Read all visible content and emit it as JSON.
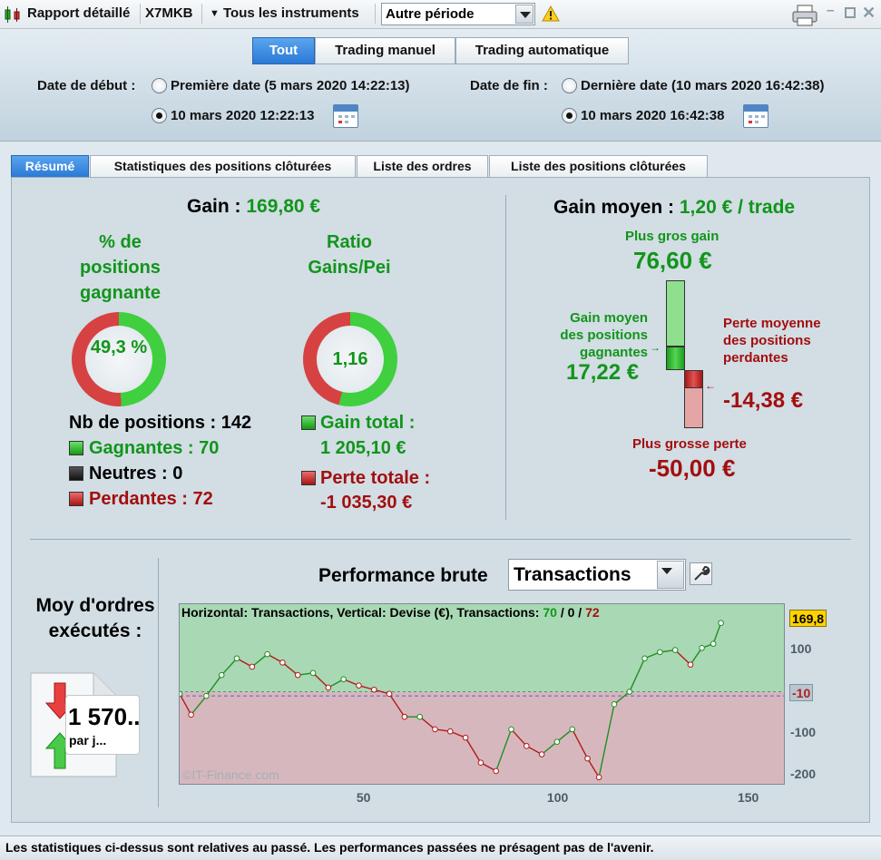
{
  "toolbar": {
    "report_label": "Rapport détaillé",
    "symbol": "X7MKB",
    "instruments_label": "Tous les instruments",
    "period_value": "Autre période"
  },
  "header": {
    "modes": [
      "Tout",
      "Trading manuel",
      "Trading automatique"
    ],
    "start_label": "Date de début :",
    "start_first_option": "Première date (5 mars 2020 14:22:13)",
    "start_custom_value": "10 mars 2020 12:22:13",
    "end_label": "Date de fin :",
    "end_last_option": "Dernière date (10 mars 2020 16:42:38)",
    "end_custom_value": "10 mars 2020 16:42:38"
  },
  "tabs": [
    "Résumé",
    "Statistiques des positions clôturées",
    "Liste des ordres",
    "Liste des positions clôturées"
  ],
  "summary": {
    "gain_label": "Gain :",
    "gain_value": "169,80 €",
    "win_pct_title": "% de positions gagnante",
    "win_pct_value": "49,3 %",
    "win_pct_fraction": 0.493,
    "ratio_title": "Ratio Gains/Pei",
    "ratio_value": "1,16",
    "ratio_fraction": 0.538,
    "nb_positions": "Nb de positions : 142",
    "winners": "Gagnantes : 70",
    "neutrals": "Neutres : 0",
    "losers": "Perdantes : 72",
    "gain_total_label": "Gain total :",
    "gain_total_value": "1 205,10 €",
    "loss_total_label": "Perte totale :",
    "loss_total_value": "-1 035,30 €",
    "avg_gain_label": "Gain moyen :",
    "avg_gain_value": "1,20 € / trade",
    "biggest_gain_label": "Plus gros gain",
    "biggest_gain_value": "76,60 €",
    "avg_win_label": "Gain moyen des positions gagnantes",
    "avg_win_value": "17,22 €",
    "avg_loss_label": "Perte moyenne des positions perdantes",
    "avg_loss_value": "-14,38 €",
    "biggest_loss_label": "Plus grosse perte",
    "biggest_loss_value": "-50,00 €"
  },
  "orders": {
    "title": "Moy d'ordres exécutés :",
    "value": "1 570..",
    "unit": "par j..."
  },
  "performance": {
    "title": "Performance brute",
    "selector_value": "Transactions",
    "chart_header_prefix": "Horizontal: Transactions, Vertical: Devise (€), Transactions:",
    "count_wins": "70",
    "count_neutral": "0",
    "count_losses": "72",
    "last_value_tag": "169,8",
    "ref_tag": "-10",
    "watermark": "©IT-Finance.com"
  },
  "footer": {
    "disclaimer": "Les statistiques ci-dessus sont relatives au passé. Les performances passées ne présagent pas de l'avenir."
  },
  "colors": {
    "green": "#11951a",
    "red": "#a30e0e",
    "accent": "#2a79d6"
  },
  "chart_data": {
    "type": "line",
    "title": "Performance brute",
    "xlabel": "Transactions",
    "ylabel": "Devise (€)",
    "xlim": [
      1,
      160
    ],
    "ylim": [
      -225,
      210
    ],
    "x_ticks": [
      50,
      100,
      150
    ],
    "y_ticks": [
      100,
      -100,
      -200
    ],
    "series": [
      {
        "x": [
          1,
          4,
          8,
          12,
          16,
          20,
          24,
          28,
          32,
          36,
          40,
          44,
          48,
          52,
          56,
          60,
          64,
          68,
          72,
          76,
          80,
          84,
          88,
          92,
          96,
          100,
          104,
          108,
          111,
          115,
          119,
          123,
          127,
          131,
          135,
          138,
          141,
          143
        ],
        "values": [
          -5,
          -55,
          -10,
          40,
          80,
          60,
          90,
          70,
          40,
          45,
          10,
          30,
          15,
          5,
          -5,
          -60,
          -60,
          -90,
          -95,
          -110,
          -170,
          -190,
          -90,
          -130,
          -150,
          -120,
          -90,
          -160,
          -205,
          -30,
          0,
          80,
          95,
          100,
          65,
          105,
          115,
          165
        ]
      }
    ]
  }
}
